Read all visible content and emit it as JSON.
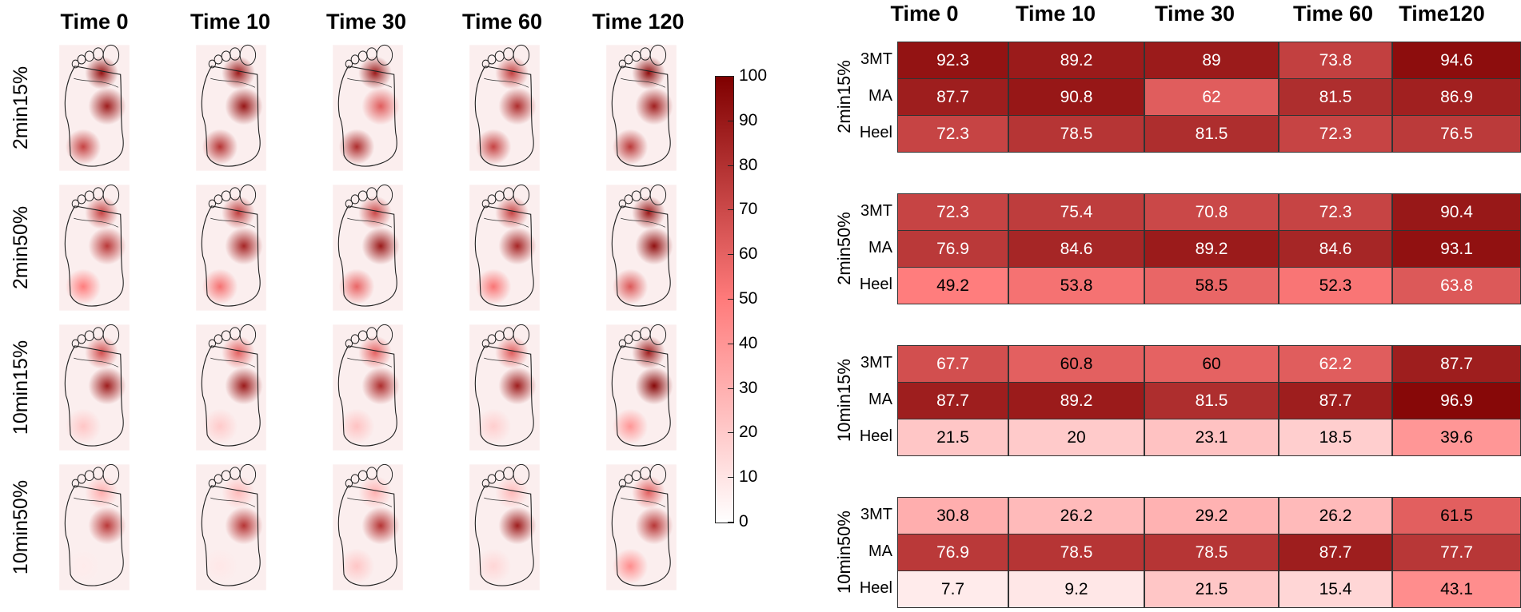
{
  "chart_data": {
    "type": "heatmap",
    "title": "",
    "time_labels": [
      "Time 0",
      "Time 10",
      "Time 30",
      "Time 60",
      "Time 120"
    ],
    "table_time_labels": [
      "Time 0",
      "Time 10",
      "Time 30",
      "Time 60",
      "Time120"
    ],
    "conditions": [
      "2min15%",
      "2min50%",
      "10min15%",
      "10min50%"
    ],
    "regions": [
      "3MT",
      "MA",
      "Heel"
    ],
    "colorbar": {
      "min": 0,
      "max": 100,
      "ticks": [
        "0",
        "10",
        "20",
        "30",
        "40",
        "50",
        "60",
        "70",
        "80",
        "90",
        "100"
      ],
      "colors": [
        "#ffffff",
        "#ff7b7b",
        "#7f0000"
      ]
    },
    "values": [
      [
        [
          92.3,
          89.2,
          89,
          73.8,
          94.6
        ],
        [
          87.7,
          90.8,
          62,
          81.5,
          86.9
        ],
        [
          72.3,
          78.5,
          81.5,
          72.3,
          76.5
        ]
      ],
      [
        [
          72.3,
          75.4,
          70.8,
          72.3,
          90.4
        ],
        [
          76.9,
          84.6,
          89.2,
          84.6,
          93.1
        ],
        [
          49.2,
          53.8,
          58.5,
          52.3,
          63.8
        ]
      ],
      [
        [
          67.7,
          60.8,
          60,
          62.2,
          87.7
        ],
        [
          87.7,
          89.2,
          81.5,
          87.7,
          96.9
        ],
        [
          21.5,
          20,
          23.1,
          18.5,
          39.6
        ]
      ],
      [
        [
          30.8,
          26.2,
          29.2,
          26.2,
          61.5
        ],
        [
          76.9,
          78.5,
          78.5,
          87.7,
          77.7
        ],
        [
          7.7,
          9.2,
          21.5,
          15.4,
          43.1
        ]
      ]
    ],
    "value_labels": [
      [
        [
          "92.3",
          "89.2",
          "89",
          "73.8",
          "94.6"
        ],
        [
          "87.7",
          "90.8",
          "62",
          "81.5",
          "86.9"
        ],
        [
          "72.3",
          "78.5",
          "81.5",
          "72.3",
          "76.5"
        ]
      ],
      [
        [
          "72.3",
          "75.4",
          "70.8",
          "72.3",
          "90.4"
        ],
        [
          "76.9",
          "84.6",
          "89.2",
          "84.6",
          "93.1"
        ],
        [
          "49.2",
          "53.8",
          "58.5",
          "52.3",
          "63.8"
        ]
      ],
      [
        [
          "67.7",
          "60.8",
          "60",
          "62.2",
          "87.7"
        ],
        [
          "87.7",
          "89.2",
          "81.5",
          "87.7",
          "96.9"
        ],
        [
          "21.5",
          "20",
          "23.1",
          "18.5",
          "39.6"
        ]
      ],
      [
        [
          "30.8",
          "26.2",
          "29.2",
          "26.2",
          "61.5"
        ],
        [
          "76.9",
          "78.5",
          "78.5",
          "87.7",
          "77.7"
        ],
        [
          "7.7",
          "9.2",
          "21.5",
          "15.4",
          "43.1"
        ]
      ]
    ]
  }
}
